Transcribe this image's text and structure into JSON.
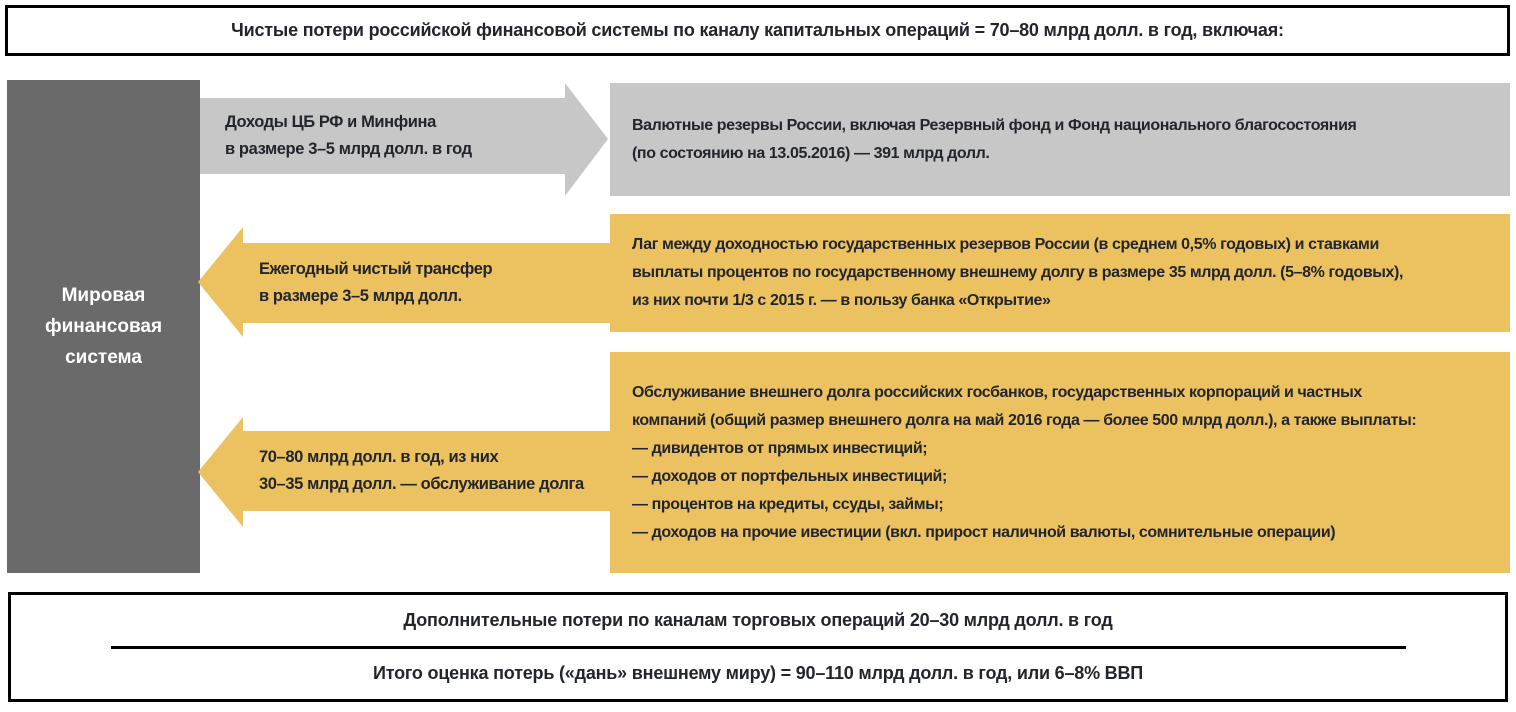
{
  "title": {
    "text": "Чистые потери российской финансовой системы по каналу капитальных операций = 70–80 млрд долл. в год, включая:"
  },
  "world_box": {
    "label": "Мировая финансовая система"
  },
  "flows": [
    {
      "arrow_direction": "right",
      "arrow_lines": [
        "Доходы ЦБ РФ и Минфина",
        "в размере 3–5 млрд долл. в год"
      ],
      "box_lines": [
        "Валютные резервы России, включая Резервный фонд и Фонд национального благосостояния",
        "(по состоянию на 13.05.2016) — 391 млрд долл."
      ]
    },
    {
      "arrow_direction": "left",
      "arrow_lines": [
        "Ежегодный чистый трансфер",
        "в размере 3–5 млрд долл."
      ],
      "box_lines": [
        "Лаг между доходностью государственных резервов России (в среднем 0,5% годовых) и ставками",
        "выплаты процентов по государственному внешнему долгу в размере 35 млрд долл. (5–8% годовых),",
        "из них почти 1/3 с 2015 г. — в пользу банка «Открытие»"
      ]
    },
    {
      "arrow_direction": "left",
      "arrow_lines": [
        "70–80 млрд долл. в год, из них",
        "30–35 млрд долл. — обслуживание долга"
      ],
      "box_lines": [
        "Обслуживание внешнего долга российских госбанков, государственных корпораций и частных",
        "компаний (общий размер внешнего долга на май 2016 года — более 500 млрд долл.), а также выплаты:",
        "— дивидентов от прямых инвестиций;",
        "— доходов от портфельных инвестиций;",
        "— процентов на кредиты, ссуды, займы;",
        "— доходов на прочие ивестиции (вкл. прирост наличной валюты, сомнительные операции)"
      ]
    }
  ],
  "footer": {
    "line1": "Дополнительные потери по каналам торговых операций 20–30 млрд долл. в год",
    "line2": "Итого оценка потерь («дань» внешнему миру) = 90–110 млрд долл. в год, или 6–8% ВВП"
  },
  "colors": {
    "accent_yellow": "#ecc261",
    "light_gray": "#c7c7c7",
    "dark_gray": "#6a6a6a",
    "text_dark": "#23252d",
    "border_black": "#000000"
  }
}
